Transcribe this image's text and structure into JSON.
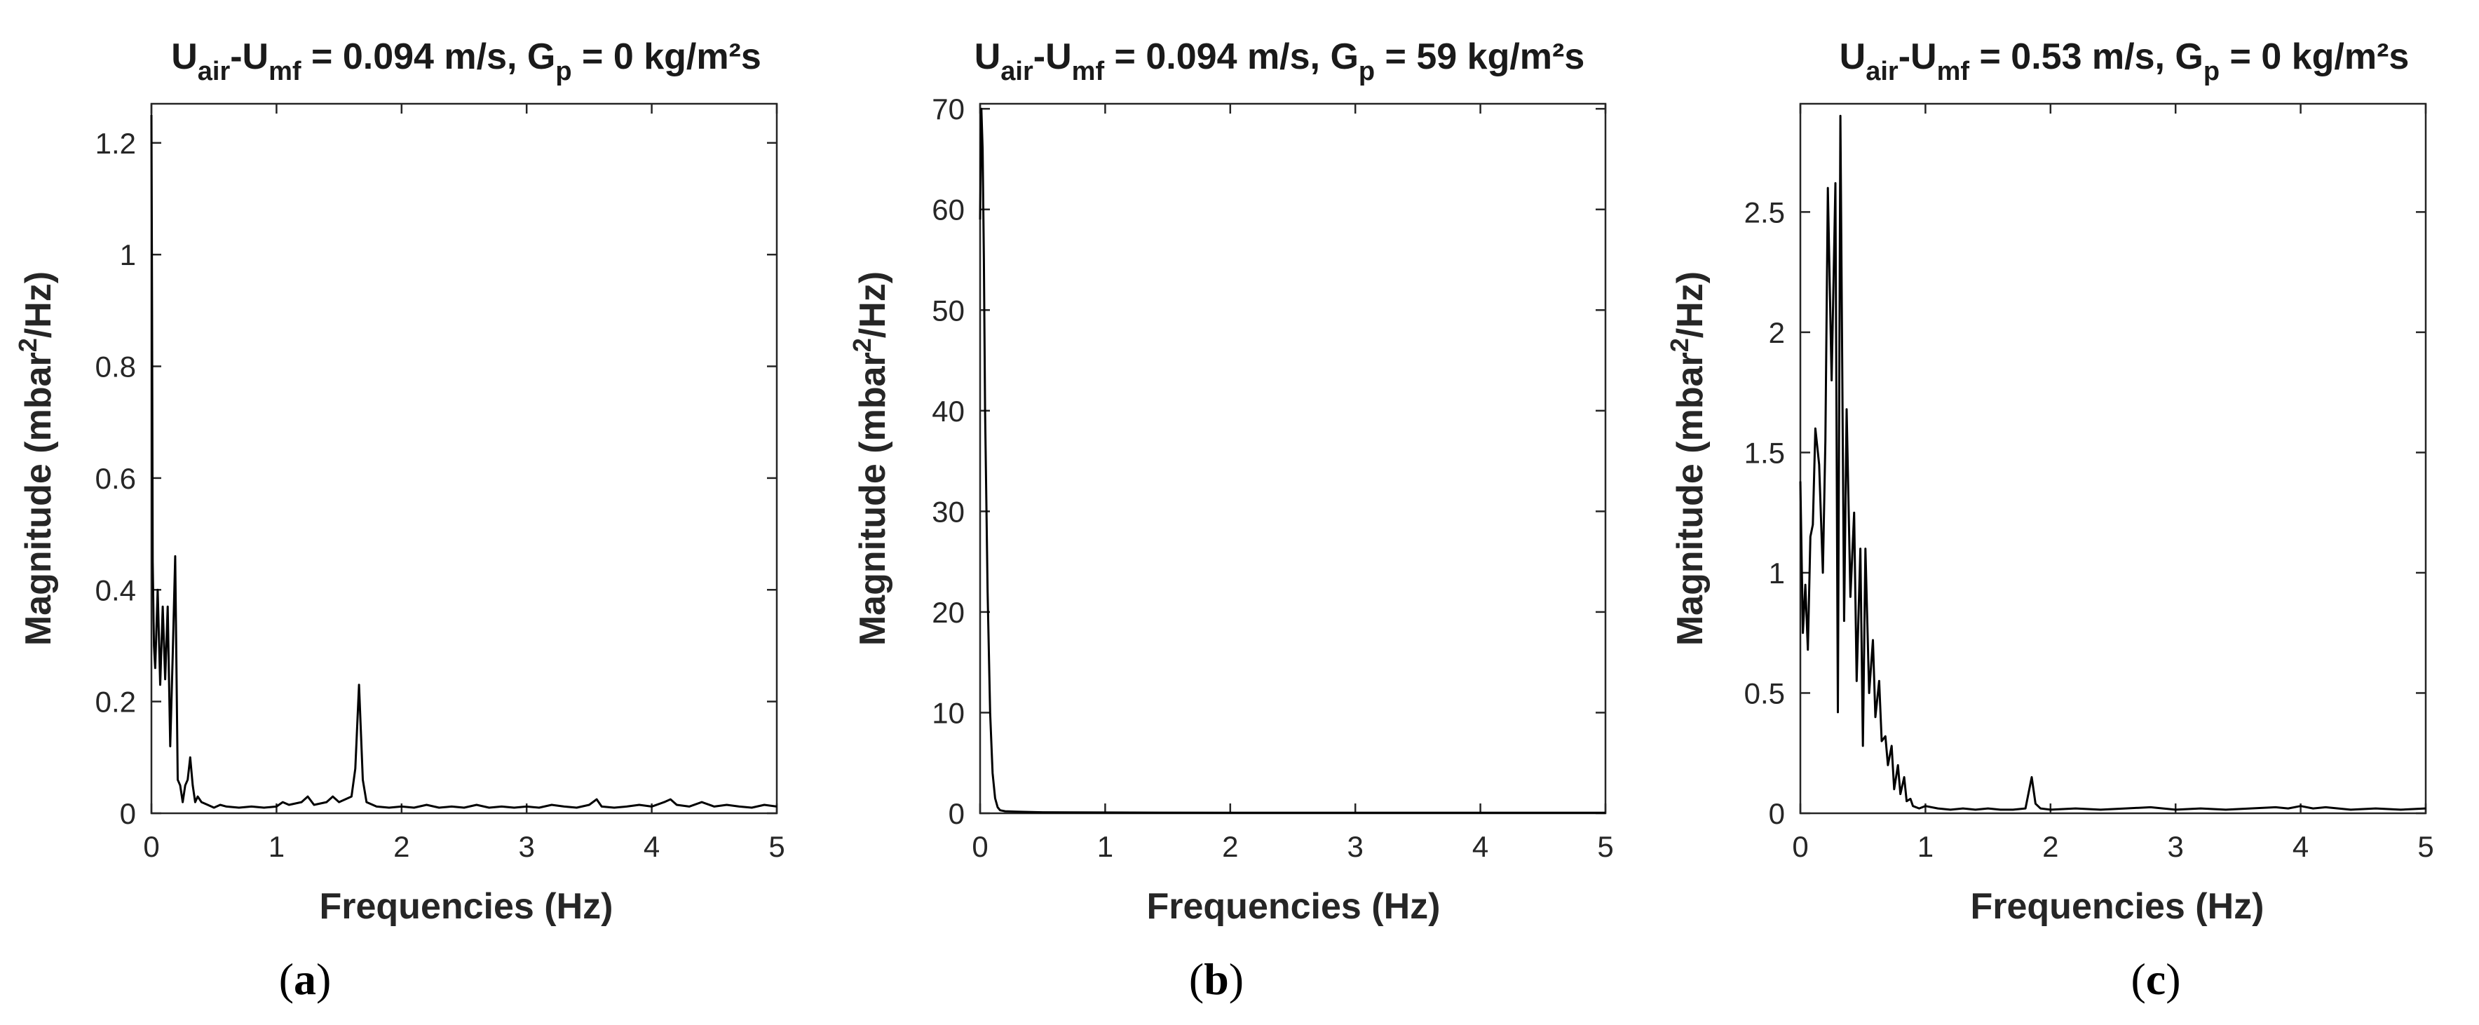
{
  "chart_data": [
    {
      "type": "line",
      "panel_label": "a",
      "title": {
        "p1": "U",
        "s1": "air",
        "p2": "-U",
        "s2": "mf",
        "p3": " = 0.094 m/s, G",
        "s3": "p",
        "p4": " = 0 kg/m²s"
      },
      "xlabel": "Frequencies (Hz)",
      "ylabel": {
        "pre": "Magnitude (mbar",
        "sup": "2",
        "post": "/Hz)"
      },
      "xlim": [
        0,
        5
      ],
      "ylim": [
        0,
        1.27
      ],
      "xticks": [
        0,
        1,
        2,
        3,
        4,
        5
      ],
      "xtick_labels": [
        "0",
        "1",
        "2",
        "3",
        "4",
        "5"
      ],
      "yticks": [
        0,
        0.2,
        0.4,
        0.6,
        0.8,
        1,
        1.2
      ],
      "ytick_labels": [
        "0",
        "0.2",
        "0.4",
        "0.6",
        "0.8",
        "1",
        "1.2"
      ],
      "grid": false,
      "line_color": "#000000",
      "x": [
        0,
        0.005,
        0.01,
        0.02,
        0.03,
        0.05,
        0.07,
        0.09,
        0.11,
        0.13,
        0.15,
        0.17,
        0.19,
        0.21,
        0.23,
        0.25,
        0.27,
        0.29,
        0.31,
        0.33,
        0.35,
        0.37,
        0.4,
        0.45,
        0.5,
        0.55,
        0.6,
        0.7,
        0.8,
        0.9,
        1.0,
        1.05,
        1.1,
        1.2,
        1.25,
        1.3,
        1.4,
        1.45,
        1.5,
        1.55,
        1.6,
        1.63,
        1.66,
        1.69,
        1.72,
        1.8,
        1.9,
        2.0,
        2.1,
        2.2,
        2.3,
        2.4,
        2.5,
        2.6,
        2.7,
        2.8,
        2.9,
        3.0,
        3.1,
        3.2,
        3.3,
        3.4,
        3.5,
        3.56,
        3.6,
        3.7,
        3.8,
        3.9,
        4.0,
        4.1,
        4.15,
        4.2,
        4.3,
        4.4,
        4.5,
        4.6,
        4.7,
        4.8,
        4.9,
        5.0
      ],
      "y": [
        1.25,
        0.9,
        0.45,
        0.3,
        0.26,
        0.4,
        0.23,
        0.37,
        0.24,
        0.37,
        0.12,
        0.28,
        0.46,
        0.06,
        0.05,
        0.02,
        0.05,
        0.06,
        0.1,
        0.05,
        0.02,
        0.03,
        0.02,
        0.015,
        0.01,
        0.015,
        0.012,
        0.01,
        0.012,
        0.01,
        0.012,
        0.02,
        0.015,
        0.02,
        0.03,
        0.015,
        0.02,
        0.03,
        0.02,
        0.025,
        0.03,
        0.08,
        0.23,
        0.06,
        0.02,
        0.012,
        0.01,
        0.012,
        0.01,
        0.015,
        0.01,
        0.012,
        0.01,
        0.015,
        0.01,
        0.012,
        0.01,
        0.012,
        0.01,
        0.015,
        0.012,
        0.01,
        0.015,
        0.025,
        0.012,
        0.01,
        0.012,
        0.015,
        0.012,
        0.02,
        0.025,
        0.015,
        0.012,
        0.02,
        0.012,
        0.015,
        0.012,
        0.01,
        0.015,
        0.012
      ]
    },
    {
      "type": "line",
      "panel_label": "b",
      "title": {
        "p1": "U",
        "s1": "air",
        "p2": "-U",
        "s2": "mf",
        "p3": " = 0.094 m/s, G",
        "s3": "p",
        "p4": " = 59 kg/m²s"
      },
      "xlabel": "Frequencies (Hz)",
      "ylabel": {
        "pre": "Magnitude (mbar",
        "sup": "2",
        "post": "/Hz)"
      },
      "xlim": [
        0,
        5
      ],
      "ylim": [
        0,
        70.5
      ],
      "xticks": [
        0,
        1,
        2,
        3,
        4,
        5
      ],
      "xtick_labels": [
        "0",
        "1",
        "2",
        "3",
        "4",
        "5"
      ],
      "yticks": [
        0,
        10,
        20,
        30,
        40,
        50,
        60,
        70
      ],
      "ytick_labels": [
        "0",
        "10",
        "20",
        "30",
        "40",
        "50",
        "60",
        "70"
      ],
      "grid": false,
      "line_color": "#000000",
      "x": [
        0,
        0.01,
        0.02,
        0.03,
        0.04,
        0.06,
        0.08,
        0.1,
        0.12,
        0.14,
        0.16,
        0.2,
        0.3,
        0.5,
        1.0,
        2.0,
        3.0,
        4.0,
        5.0
      ],
      "y": [
        59,
        70,
        66,
        55,
        40,
        22,
        10,
        4,
        1.5,
        0.6,
        0.3,
        0.2,
        0.15,
        0.1,
        0.08,
        0.05,
        0.05,
        0.05,
        0.05
      ]
    },
    {
      "type": "line",
      "panel_label": "c",
      "title": {
        "p1": "U",
        "s1": "air",
        "p2": "-U",
        "s2": "mf",
        "p3": " = 0.53 m/s, G",
        "s3": "p",
        "p4": " = 0 kg/m²s"
      },
      "xlabel": "Frequencies (Hz)",
      "ylabel": {
        "pre": "Magnitude (mbar",
        "sup": "2",
        "post": "/Hz)"
      },
      "xlim": [
        0,
        5
      ],
      "ylim": [
        0,
        2.95
      ],
      "xticks": [
        0,
        1,
        2,
        3,
        4,
        5
      ],
      "xtick_labels": [
        "0",
        "1",
        "2",
        "3",
        "4",
        "5"
      ],
      "yticks": [
        0,
        0.5,
        1,
        1.5,
        2,
        2.5
      ],
      "ytick_labels": [
        "0",
        "0.5",
        "1",
        "1.5",
        "2",
        "2.5"
      ],
      "grid": false,
      "line_color": "#000000",
      "x": [
        0,
        0.02,
        0.04,
        0.06,
        0.08,
        0.1,
        0.12,
        0.15,
        0.18,
        0.2,
        0.22,
        0.25,
        0.28,
        0.3,
        0.32,
        0.35,
        0.37,
        0.4,
        0.43,
        0.45,
        0.48,
        0.5,
        0.52,
        0.55,
        0.58,
        0.6,
        0.63,
        0.65,
        0.68,
        0.7,
        0.73,
        0.75,
        0.78,
        0.8,
        0.83,
        0.85,
        0.88,
        0.9,
        0.95,
        1.0,
        1.1,
        1.2,
        1.3,
        1.4,
        1.5,
        1.6,
        1.7,
        1.8,
        1.85,
        1.88,
        1.92,
        2.0,
        2.2,
        2.4,
        2.6,
        2.8,
        3.0,
        3.2,
        3.4,
        3.6,
        3.8,
        3.9,
        4.0,
        4.1,
        4.2,
        4.4,
        4.6,
        4.8,
        5.0
      ],
      "y": [
        1.38,
        0.75,
        0.95,
        0.68,
        1.15,
        1.2,
        1.6,
        1.45,
        1.0,
        1.55,
        2.6,
        1.8,
        2.62,
        0.42,
        2.9,
        0.8,
        1.68,
        0.9,
        1.25,
        0.55,
        1.1,
        0.28,
        1.1,
        0.5,
        0.72,
        0.4,
        0.55,
        0.3,
        0.32,
        0.2,
        0.28,
        0.1,
        0.2,
        0.08,
        0.15,
        0.05,
        0.06,
        0.03,
        0.02,
        0.03,
        0.02,
        0.015,
        0.02,
        0.015,
        0.02,
        0.015,
        0.015,
        0.02,
        0.15,
        0.04,
        0.02,
        0.015,
        0.02,
        0.015,
        0.02,
        0.025,
        0.015,
        0.02,
        0.015,
        0.02,
        0.025,
        0.02,
        0.03,
        0.02,
        0.025,
        0.015,
        0.02,
        0.015,
        0.02
      ]
    }
  ]
}
